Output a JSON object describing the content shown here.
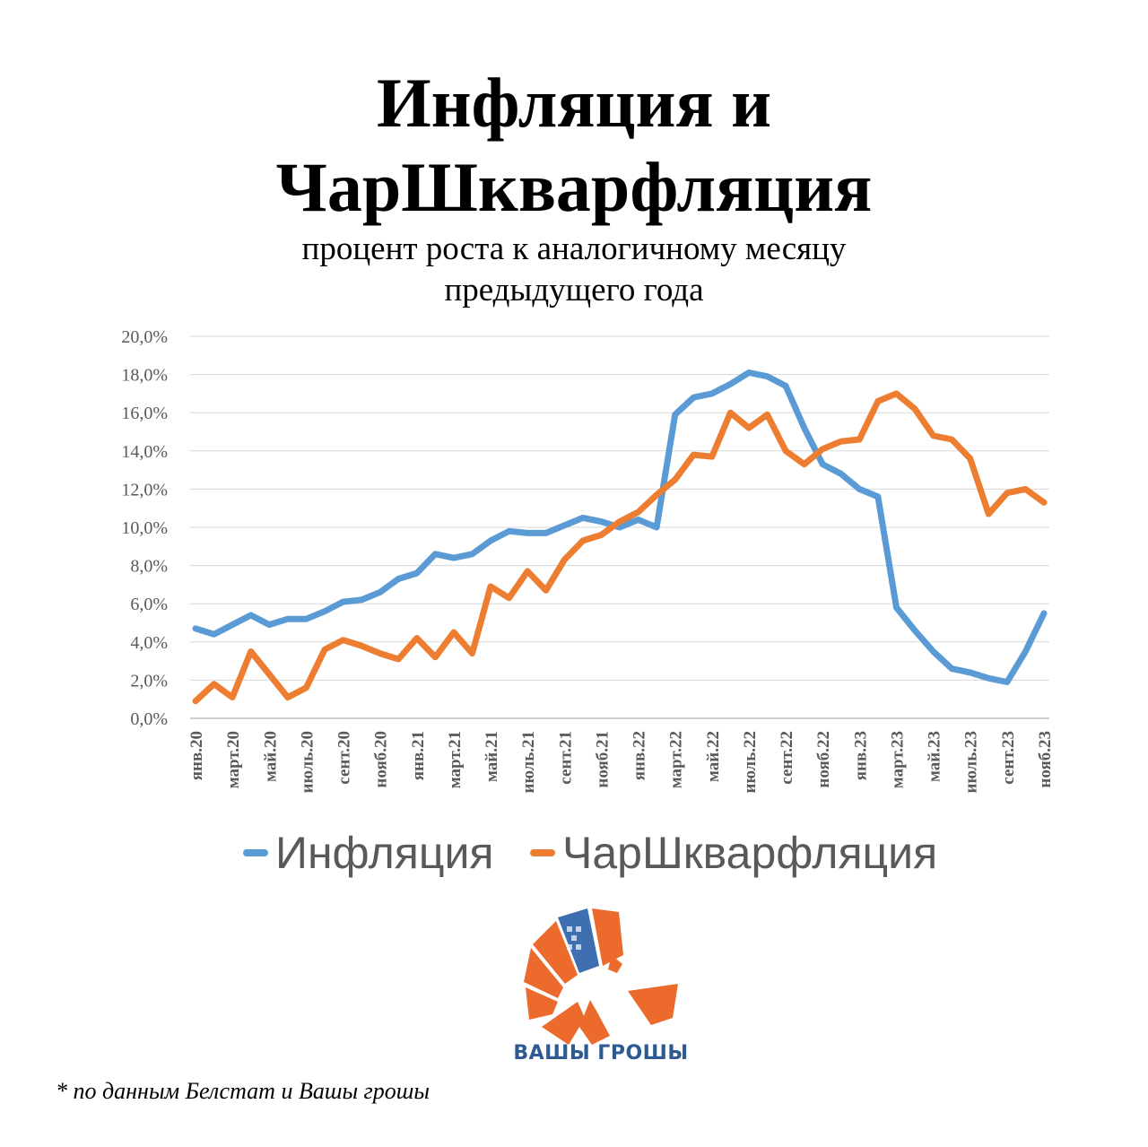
{
  "title_line1": "Инфляция и",
  "title_line2": "ЧарШкварфляция",
  "subtitle_line1": "процент роста к аналогичному месяцу",
  "subtitle_line2": "предыдущего года",
  "footnote": "* по данным Белстат и Вашы грошы",
  "brand": "ВАШЫ ГРОШЫ",
  "chart_data": {
    "type": "line",
    "ylim": [
      0,
      20
    ],
    "ytick_labels": [
      "0,0%",
      "2,0%",
      "4,0%",
      "6,0%",
      "8,0%",
      "10,0%",
      "12,0%",
      "14,0%",
      "16,0%",
      "18,0%",
      "20,0%"
    ],
    "grid": true,
    "legend_position": "bottom",
    "x_tick_labels": [
      "янв.20",
      "март.20",
      "май.20",
      "июль.20",
      "сент.20",
      "нояб.20",
      "янв.21",
      "март.21",
      "май.21",
      "июль.21",
      "сент.21",
      "нояб.21",
      "янв.22",
      "март.22",
      "май.22",
      "июль.22",
      "сент.22",
      "нояб.22",
      "янв.23",
      "март.23",
      "май.23",
      "июль.23",
      "сент.23",
      "нояб.23"
    ],
    "series": [
      {
        "name": "Инфляция",
        "color": "#5b9bd5",
        "values": [
          4.7,
          4.4,
          4.9,
          5.4,
          4.9,
          5.2,
          5.2,
          5.6,
          6.1,
          6.2,
          6.6,
          7.3,
          7.6,
          8.6,
          8.4,
          8.6,
          9.3,
          9.8,
          9.7,
          9.7,
          10.1,
          10.5,
          10.3,
          10.0,
          10.4,
          10.0,
          15.9,
          16.8,
          17.0,
          17.5,
          18.1,
          17.9,
          17.4,
          15.2,
          13.3,
          12.8,
          12.0,
          11.6,
          5.8,
          4.6,
          3.5,
          2.6,
          2.4,
          2.1,
          1.9,
          3.5,
          5.5
        ]
      },
      {
        "name": "ЧарШкварфляция",
        "color": "#ed7d31",
        "values": [
          0.9,
          1.8,
          1.1,
          3.5,
          2.3,
          1.1,
          1.6,
          3.6,
          4.1,
          3.8,
          3.4,
          3.1,
          4.2,
          3.2,
          4.5,
          3.4,
          6.9,
          6.3,
          7.7,
          6.7,
          8.3,
          9.3,
          9.6,
          10.3,
          10.8,
          11.7,
          12.5,
          13.8,
          13.7,
          16.0,
          15.2,
          15.9,
          14.0,
          13.3,
          14.1,
          14.5,
          14.6,
          16.6,
          17.0,
          16.2,
          14.8,
          14.6,
          13.6,
          10.7,
          11.8,
          12.0,
          11.3
        ]
      }
    ]
  }
}
